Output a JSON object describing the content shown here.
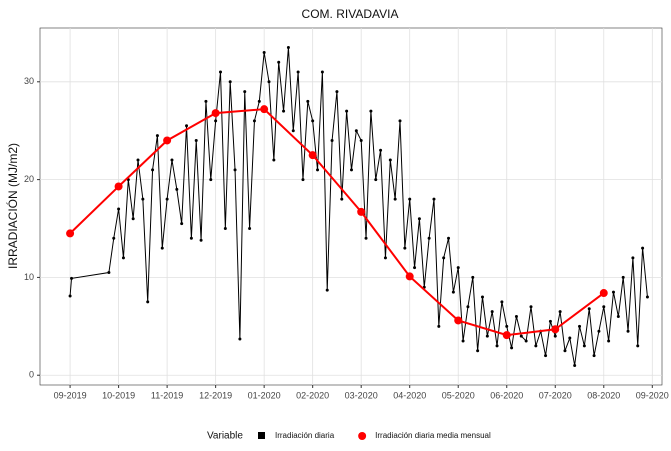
{
  "chart_data": {
    "type": "line",
    "title": "COM. RIVADAVIA",
    "y_label": "IRRADIACIÓN (MJ/m2)",
    "legend_title": "Variable",
    "legend_position": "bottom",
    "grid": true,
    "xlim": [
      -0.62,
      12.2
    ],
    "ylim": [
      -1,
      35.5
    ],
    "xticks": [
      {
        "value": 0,
        "label": "09-2019"
      },
      {
        "value": 1,
        "label": "10-2019"
      },
      {
        "value": 2,
        "label": "11-2019"
      },
      {
        "value": 3,
        "label": "12-2019"
      },
      {
        "value": 4,
        "label": "01-2020"
      },
      {
        "value": 5,
        "label": "02-2020"
      },
      {
        "value": 6,
        "label": "03-2020"
      },
      {
        "value": 7,
        "label": "04-2020"
      },
      {
        "value": 8,
        "label": "05-2020"
      },
      {
        "value": 9,
        "label": "06-2020"
      },
      {
        "value": 10,
        "label": "07-2020"
      },
      {
        "value": 11,
        "label": "08-2020"
      },
      {
        "value": 12,
        "label": "09-2020"
      }
    ],
    "yticks": [
      0,
      10,
      20,
      30
    ],
    "series": [
      {
        "name": "Irradiación diaria",
        "color": "#000000",
        "marker": "square",
        "x": [
          0,
          0.03,
          0.8,
          0.9,
          1.0,
          1.1,
          1.2,
          1.3,
          1.4,
          1.5,
          1.6,
          1.7,
          1.8,
          1.9,
          2.0,
          2.1,
          2.2,
          2.3,
          2.4,
          2.5,
          2.6,
          2.7,
          2.8,
          2.9,
          3.0,
          3.1,
          3.2,
          3.3,
          3.4,
          3.5,
          3.6,
          3.7,
          3.8,
          3.9,
          4.0,
          4.1,
          4.2,
          4.3,
          4.4,
          4.5,
          4.6,
          4.7,
          4.8,
          4.9,
          5.0,
          5.1,
          5.2,
          5.3,
          5.4,
          5.5,
          5.6,
          5.7,
          5.8,
          5.9,
          6.0,
          6.1,
          6.2,
          6.3,
          6.4,
          6.5,
          6.6,
          6.7,
          6.8,
          6.9,
          7.0,
          7.1,
          7.2,
          7.3,
          7.4,
          7.5,
          7.6,
          7.7,
          7.8,
          7.9,
          8.0,
          8.1,
          8.2,
          8.3,
          8.4,
          8.5,
          8.6,
          8.7,
          8.8,
          8.9,
          9.0,
          9.1,
          9.2,
          9.3,
          9.4,
          9.5,
          9.6,
          9.7,
          9.8,
          9.9,
          10.0,
          10.1,
          10.2,
          10.3,
          10.4,
          10.5,
          10.6,
          10.7,
          10.8,
          10.9,
          11.0,
          11.1,
          11.2,
          11.3,
          11.4,
          11.5,
          11.6,
          11.7,
          11.8,
          11.9
        ],
        "values": [
          8.1,
          9.9,
          10.5,
          14,
          17,
          12,
          20,
          16,
          22,
          18,
          7.5,
          21,
          24.5,
          13,
          18,
          22,
          19,
          15.5,
          25.5,
          14,
          24,
          13.8,
          28,
          20,
          26,
          31,
          15,
          30,
          21,
          3.7,
          29,
          15,
          26,
          28,
          33,
          30,
          22,
          32,
          27,
          33.5,
          25,
          31,
          20,
          28,
          26,
          21,
          31,
          8.7,
          24,
          29,
          18,
          27,
          21,
          25,
          24,
          14,
          27,
          20,
          23,
          12,
          22,
          18,
          26,
          13,
          18,
          11,
          16,
          9,
          14,
          18,
          5,
          12,
          14,
          8.5,
          11,
          3.5,
          7,
          10,
          2.5,
          8,
          4,
          6.5,
          3,
          7.5,
          5,
          2.8,
          6,
          4,
          3.5,
          7,
          3,
          4.5,
          2,
          5.5,
          4,
          6.5,
          2.5,
          3.8,
          1,
          5,
          3,
          6.8,
          2,
          4.5,
          7,
          3.5,
          8.5,
          6,
          10,
          4.5,
          12,
          3,
          13,
          8
        ]
      },
      {
        "name": "Irradiación diaria media mensual",
        "color": "#ff0000",
        "marker": "circle",
        "x": [
          0,
          1,
          2,
          3,
          4,
          5,
          6,
          7,
          8,
          9,
          10,
          11
        ],
        "values": [
          14.5,
          19.3,
          24,
          26.8,
          27.2,
          22.5,
          16.7,
          10.1,
          5.6,
          4.1,
          4.7,
          8.4
        ]
      }
    ]
  }
}
